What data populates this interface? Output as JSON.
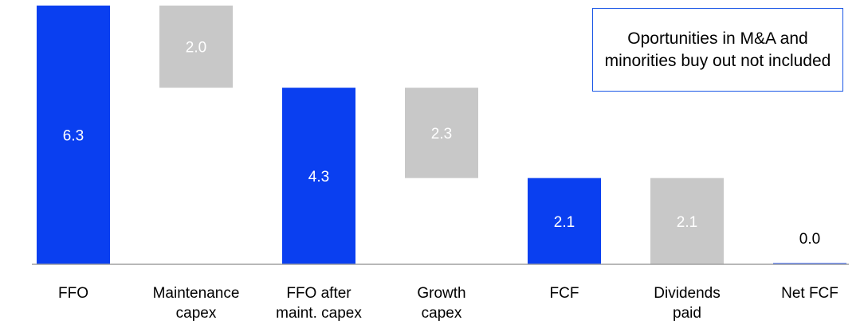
{
  "chart_data": {
    "type": "waterfall",
    "title": "",
    "xlabel": "",
    "ylabel": "",
    "ylim": [
      0,
      6.3
    ],
    "grid": false,
    "legend": "none",
    "categories": [
      [
        "FFO"
      ],
      [
        "Maintenance",
        "capex"
      ],
      [
        "FFO after",
        "maint. capex"
      ],
      [
        "Growth",
        "capex"
      ],
      [
        "FCF"
      ],
      [
        "Dividends",
        "paid"
      ],
      [
        "Net FCF"
      ]
    ],
    "bars": [
      {
        "kind": "total",
        "bottom": 0.0,
        "top": 6.3,
        "label": "6.3"
      },
      {
        "kind": "delta",
        "bottom": 4.3,
        "top": 6.3,
        "label": "2.0"
      },
      {
        "kind": "total",
        "bottom": 0.0,
        "top": 4.3,
        "label": "4.3"
      },
      {
        "kind": "delta",
        "bottom": 2.1,
        "top": 4.3,
        "label": "2.3"
      },
      {
        "kind": "total",
        "bottom": 0.0,
        "top": 2.1,
        "label": "2.1"
      },
      {
        "kind": "delta",
        "bottom": 0.0,
        "top": 2.1,
        "label": "2.1"
      },
      {
        "kind": "total",
        "bottom": 0.0,
        "top": 0.0,
        "label": "0.0"
      }
    ],
    "annotation": "Oportunities in M&A and minorities buy out not included",
    "colors": {
      "total": "#0a3ff0",
      "delta": "#c8c8c8",
      "axis": "#a0a0a0",
      "annotation_border": "#1a56e6"
    }
  }
}
